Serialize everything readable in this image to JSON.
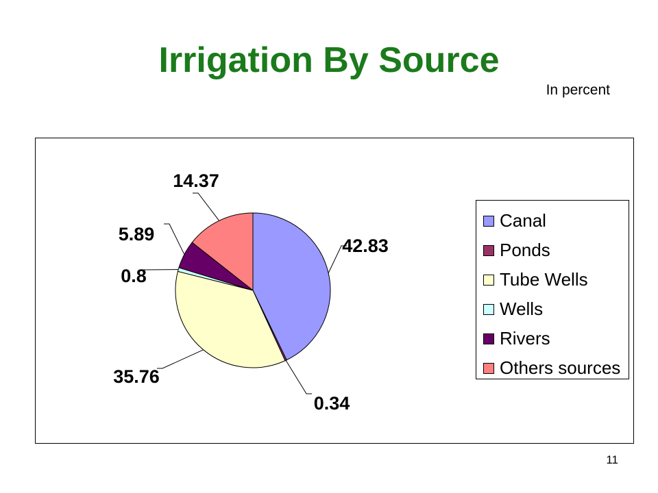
{
  "page": {
    "title": "Irrigation By Source",
    "subtitle": "In percent",
    "page_number": "11"
  },
  "chart_data": {
    "type": "pie",
    "title": "",
    "categories": [
      "Canal",
      "Ponds",
      "Tube Wells",
      "Wells",
      "Rivers",
      "Others sources"
    ],
    "values": [
      42.83,
      0.34,
      35.76,
      0.8,
      5.89,
      14.37
    ],
    "data_labels": [
      "42.83",
      "0.34",
      "35.76",
      "0.8",
      "5.89",
      "14.37"
    ],
    "colors": [
      "#9999ff",
      "#993366",
      "#ffffcc",
      "#ccffff",
      "#660066",
      "#ff8080"
    ],
    "legend_position": "right",
    "start_angle": "12 o'clock",
    "direction": "clockwise"
  }
}
